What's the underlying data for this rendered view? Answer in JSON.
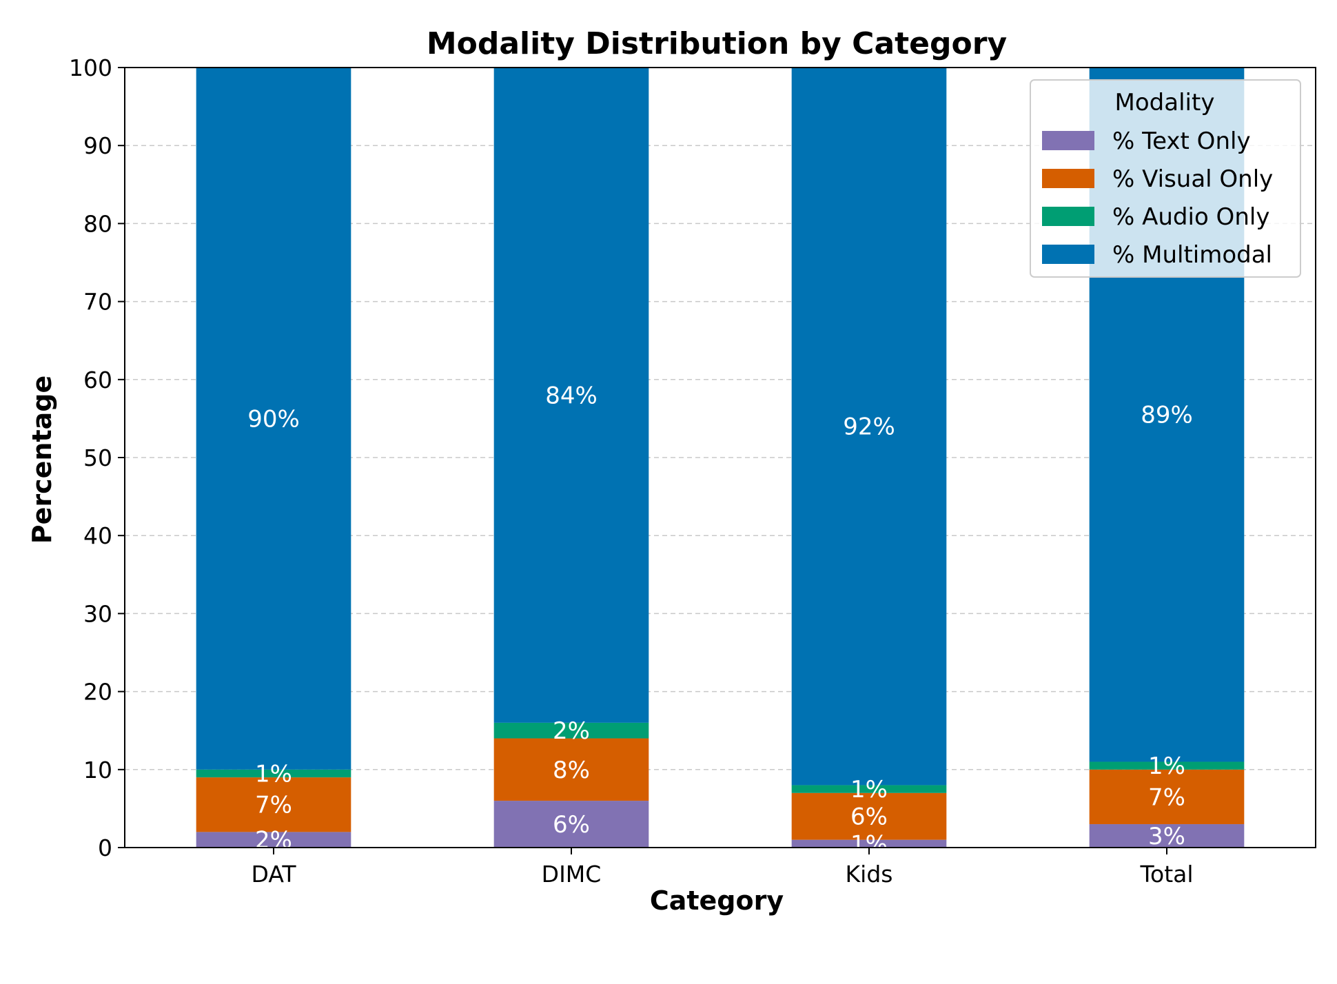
{
  "chart_data": {
    "type": "bar",
    "stacked": true,
    "title": "Modality Distribution by Category",
    "xlabel": "Category",
    "ylabel": "Percentage",
    "ylim": [
      0,
      100
    ],
    "yticks": [
      0,
      10,
      20,
      30,
      40,
      50,
      60,
      70,
      80,
      90,
      100
    ],
    "grid": "horizontal dashed",
    "categories": [
      "DAT",
      "DIMC",
      "Kids",
      "Total"
    ],
    "series": [
      {
        "name": "% Text Only",
        "color": "#8172b3",
        "values": [
          2,
          6,
          1,
          3
        ],
        "labels": [
          "2%",
          "6%",
          "1%",
          "3%"
        ]
      },
      {
        "name": "% Visual Only",
        "color": "#d55e00",
        "values": [
          7,
          8,
          6,
          7
        ],
        "labels": [
          "7%",
          "8%",
          "6%",
          "7%"
        ]
      },
      {
        "name": "% Audio Only",
        "color": "#009e73",
        "values": [
          1,
          2,
          1,
          1
        ],
        "labels": [
          "1%",
          "2%",
          "1%",
          "1%"
        ]
      },
      {
        "name": "% Multimodal",
        "color": "#0072b2",
        "values": [
          90,
          84,
          92,
          89
        ],
        "labels": [
          "90%",
          "84%",
          "92%",
          "89%"
        ]
      }
    ],
    "legend": {
      "title": "Modality",
      "placement": "top-right"
    }
  }
}
